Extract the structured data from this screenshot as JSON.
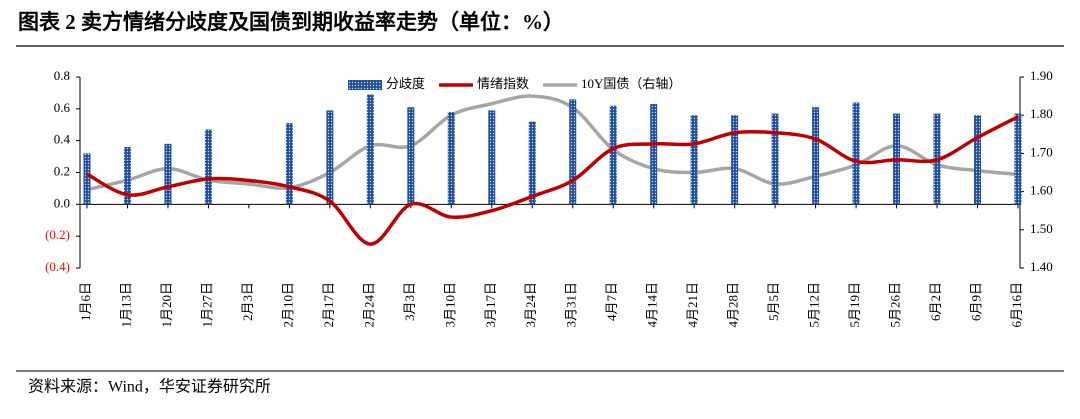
{
  "title": "图表 2 卖方情绪分歧度及国债到期收益率走势（单位：%）",
  "source": "资料来源：Wind，华安证券研究所",
  "chart_data": {
    "type": "combo",
    "categories": [
      "1月6日",
      "1月13日",
      "1月20日",
      "1月27日",
      "2月3日",
      "2月10日",
      "2月17日",
      "2月24日",
      "3月3日",
      "3月10日",
      "3月17日",
      "3月24日",
      "3月31日",
      "4月7日",
      "4月14日",
      "4月21日",
      "4月28日",
      "5月5日",
      "5月12日",
      "5月19日",
      "5月26日",
      "6月2日",
      "6月9日",
      "6月16日"
    ],
    "series": [
      {
        "name": "分歧度",
        "type": "bar",
        "color": "#1f4e9c",
        "values": [
          0.32,
          0.36,
          0.38,
          0.47,
          null,
          0.51,
          0.59,
          0.69,
          0.61,
          0.58,
          0.59,
          0.52,
          0.66,
          0.62,
          0.63,
          0.56,
          0.56,
          0.57,
          0.61,
          0.64,
          0.57,
          0.57,
          0.56,
          0.57
        ]
      },
      {
        "name": "情绪指数",
        "type": "line",
        "color": "#c00000",
        "values": [
          0.19,
          0.06,
          0.11,
          0.16,
          0.15,
          0.11,
          0.02,
          -0.25,
          0.0,
          -0.08,
          -0.04,
          0.05,
          0.15,
          0.35,
          0.38,
          0.38,
          0.45,
          0.45,
          0.41,
          0.27,
          0.28,
          0.28,
          0.42,
          0.55
        ]
      },
      {
        "name": "10Y国债（右轴）",
        "type": "line",
        "axis": "y2",
        "color": "#a6a6a6",
        "values": [
          1.605,
          1.63,
          1.66,
          1.63,
          1.62,
          1.61,
          1.65,
          1.72,
          1.72,
          1.8,
          1.83,
          1.85,
          1.82,
          1.71,
          1.66,
          1.65,
          1.66,
          1.62,
          1.64,
          1.67,
          1.72,
          1.67,
          1.655,
          1.645
        ]
      }
    ],
    "ylim": [
      -0.4,
      0.8
    ],
    "yticks": [
      {
        "value": 0.8,
        "label": "0.8"
      },
      {
        "value": 0.6,
        "label": "0.6"
      },
      {
        "value": 0.4,
        "label": "0.4"
      },
      {
        "value": 0.2,
        "label": "0.2"
      },
      {
        "value": 0,
        "label": "0.0"
      },
      {
        "value": -0.2,
        "label": "(0.2)"
      },
      {
        "value": -0.4,
        "label": "(0.4)"
      }
    ],
    "negative_tick_color": "#ff0000",
    "y2lim": [
      1.4,
      1.9
    ],
    "y2ticks": [
      {
        "value": 1.9,
        "label": "1.90"
      },
      {
        "value": 1.8,
        "label": "1.80"
      },
      {
        "value": 1.7,
        "label": "1.70"
      },
      {
        "value": 1.6,
        "label": "1.60"
      },
      {
        "value": 1.5,
        "label": "1.50"
      },
      {
        "value": 1.4,
        "label": "1.40"
      }
    ]
  }
}
